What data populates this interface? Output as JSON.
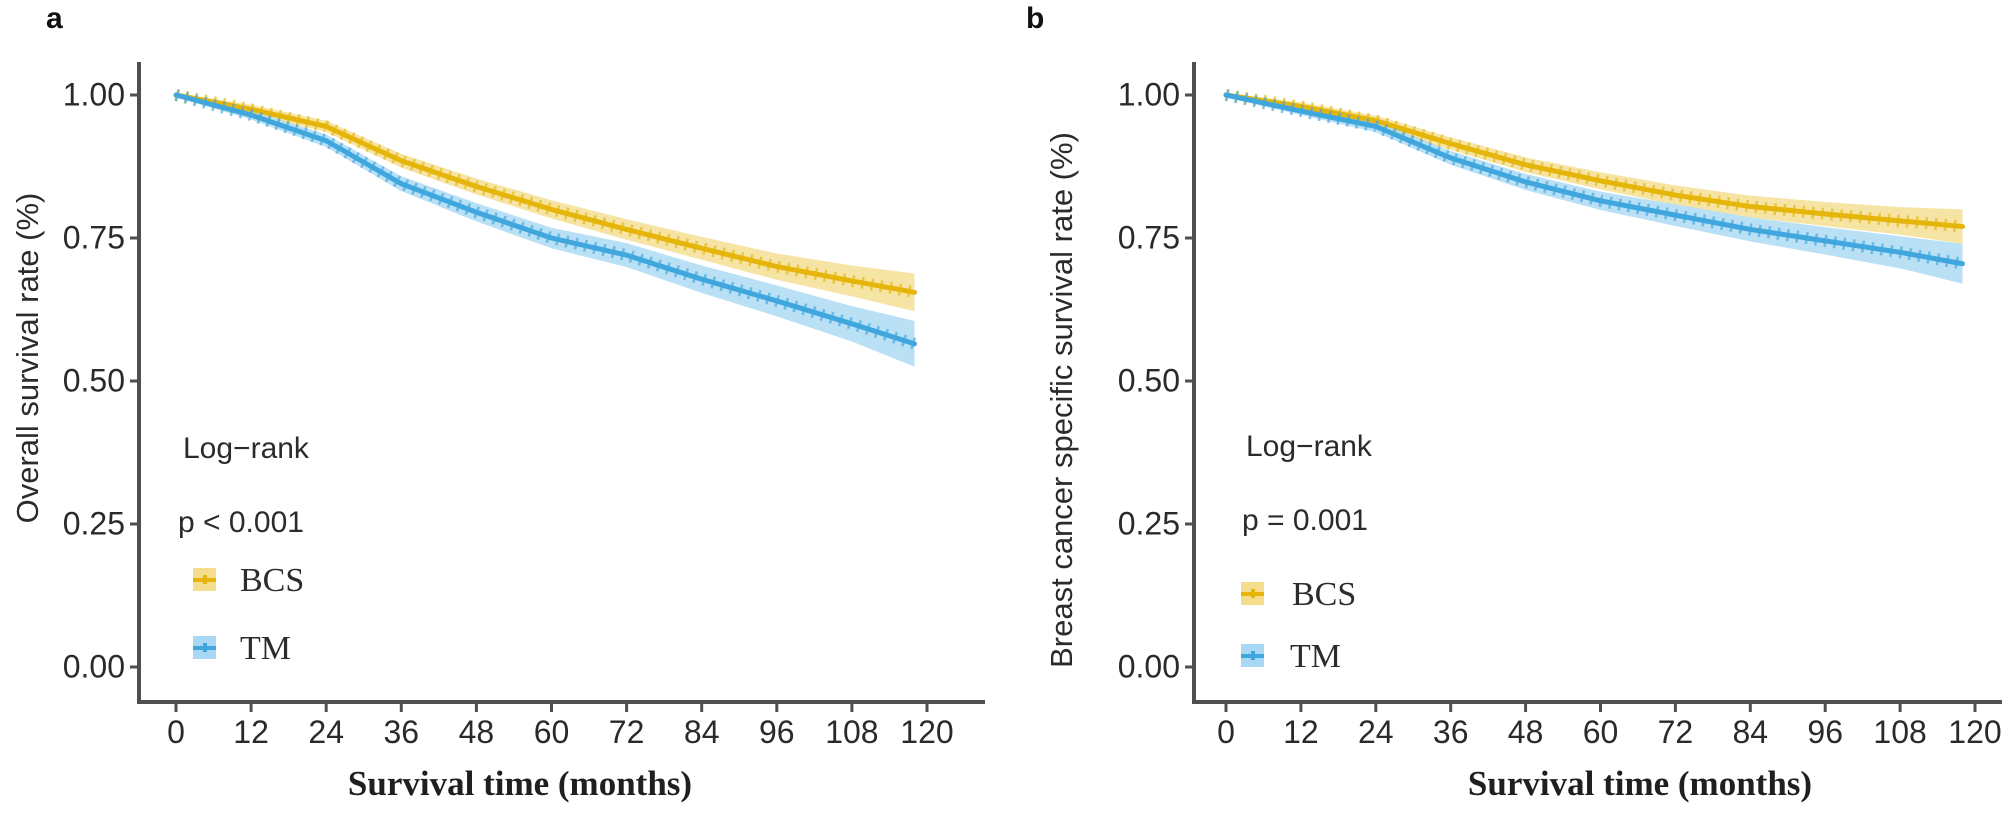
{
  "figure": {
    "panels": [
      {
        "letter": "a",
        "y_axis_label": "Overall survival rate (%)",
        "x_axis_label": "Survival time (months)",
        "legend": {
          "title": "Log−rank",
          "p_value": "p < 0.001",
          "items": [
            {
              "label": "BCS"
            },
            {
              "label": "TM"
            }
          ]
        },
        "y_ticks": [
          "1.00",
          "0.75",
          "0.50",
          "0.25",
          "0.00"
        ],
        "x_ticks": [
          "0",
          "12",
          "24",
          "36",
          "48",
          "60",
          "72",
          "84",
          "96",
          "108",
          "120"
        ]
      },
      {
        "letter": "b",
        "y_axis_label": "Breast cancer specific survival rate (%)",
        "x_axis_label": "Survival time (months)",
        "legend": {
          "title": "Log−rank",
          "p_value": "p = 0.001",
          "items": [
            {
              "label": "BCS"
            },
            {
              "label": "TM"
            }
          ]
        },
        "y_ticks": [
          "1.00",
          "0.75",
          "0.50",
          "0.25",
          "0.00"
        ],
        "x_ticks": [
          "0",
          "12",
          "24",
          "36",
          "48",
          "60",
          "72",
          "84",
          "96",
          "108",
          "120"
        ]
      }
    ]
  },
  "colors": {
    "bcs_line": "#E6B50A",
    "bcs_band": "#F4DD8D",
    "tm_line": "#3FA6DE",
    "tm_band": "#A8D8F3",
    "axis": "#4F4F4F",
    "tick_text": "#2A2A2A"
  },
  "chart_data": [
    {
      "type": "line",
      "panel_letter": "a",
      "xlabel": "Survival time (months)",
      "ylabel": "Overall survival rate (%)",
      "xlim": [
        0,
        120
      ],
      "ylim": [
        0,
        1
      ],
      "x_tick_values": [
        0,
        12,
        24,
        36,
        48,
        60,
        72,
        84,
        96,
        108,
        120
      ],
      "y_tick_values": [
        0,
        0.25,
        0.5,
        0.75,
        1
      ],
      "grid": false,
      "legend_position": "bottom-left",
      "annotations": [
        "Log−rank",
        "p < 0.001"
      ],
      "x": [
        0,
        12,
        24,
        36,
        48,
        60,
        72,
        84,
        96,
        108,
        118
      ],
      "series": [
        {
          "name": "BCS",
          "color_key": "bcs",
          "values": [
            1.0,
            0.975,
            0.945,
            0.885,
            0.84,
            0.8,
            0.765,
            0.732,
            0.7,
            0.675,
            0.655
          ],
          "ci_halfwidth": [
            0.004,
            0.008,
            0.01,
            0.012,
            0.014,
            0.016,
            0.018,
            0.02,
            0.023,
            0.027,
            0.033
          ]
        },
        {
          "name": "TM",
          "color_key": "tm",
          "values": [
            1.0,
            0.965,
            0.92,
            0.845,
            0.795,
            0.75,
            0.72,
            0.678,
            0.64,
            0.6,
            0.565
          ],
          "ci_halfwidth": [
            0.004,
            0.008,
            0.011,
            0.013,
            0.016,
            0.018,
            0.021,
            0.024,
            0.027,
            0.031,
            0.04
          ]
        }
      ]
    },
    {
      "type": "line",
      "panel_letter": "b",
      "xlabel": "Survival time (months)",
      "ylabel": "Breast cancer specific survival rate (%)",
      "xlim": [
        0,
        120
      ],
      "ylim": [
        0,
        1
      ],
      "x_tick_values": [
        0,
        12,
        24,
        36,
        48,
        60,
        72,
        84,
        96,
        108,
        120
      ],
      "y_tick_values": [
        0,
        0.25,
        0.5,
        0.75,
        1
      ],
      "grid": false,
      "legend_position": "bottom-left",
      "annotations": [
        "Log−rank",
        "p = 0.001"
      ],
      "x": [
        0,
        12,
        24,
        36,
        48,
        60,
        72,
        84,
        96,
        108,
        118
      ],
      "series": [
        {
          "name": "BCS",
          "color_key": "bcs",
          "values": [
            1.0,
            0.98,
            0.955,
            0.915,
            0.878,
            0.85,
            0.825,
            0.805,
            0.792,
            0.78,
            0.77
          ],
          "ci_halfwidth": [
            0.004,
            0.007,
            0.009,
            0.011,
            0.013,
            0.015,
            0.017,
            0.019,
            0.021,
            0.024,
            0.03
          ]
        },
        {
          "name": "TM",
          "color_key": "tm",
          "values": [
            1.0,
            0.972,
            0.945,
            0.89,
            0.848,
            0.815,
            0.79,
            0.765,
            0.745,
            0.725,
            0.705
          ],
          "ci_halfwidth": [
            0.004,
            0.007,
            0.01,
            0.012,
            0.014,
            0.016,
            0.019,
            0.021,
            0.024,
            0.028,
            0.035
          ]
        }
      ]
    }
  ]
}
